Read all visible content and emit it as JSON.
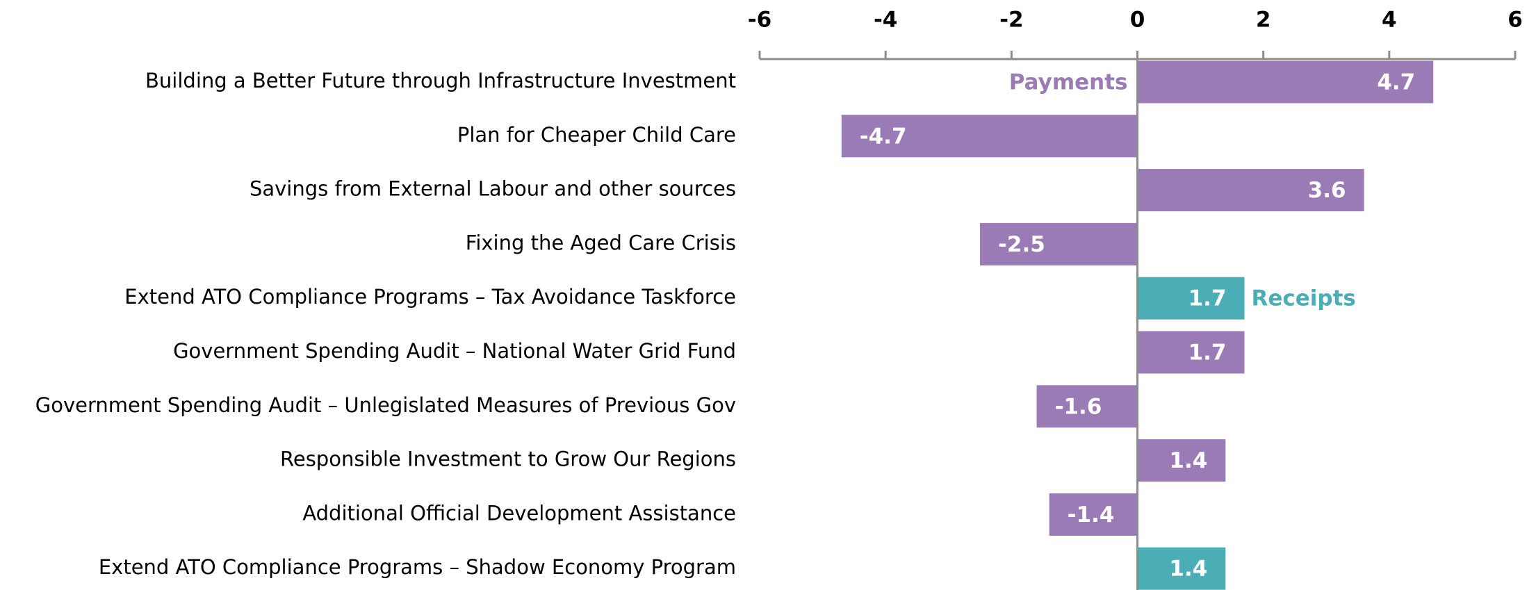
{
  "chart_data": {
    "type": "hbar",
    "categories": [
      "Building a Better Future through Infrastructure Investment",
      "Plan for Cheaper Child Care",
      "Savings from External Labour and other sources",
      "Fixing the Aged Care Crisis",
      "Extend ATO Compliance Programs – Tax Avoidance Taskforce",
      "Government Spending Audit – National Water Grid Fund",
      "Government Spending Audit – Unlegislated Measures of Previous Gov",
      "Responsible Investment to Grow Our Regions",
      "Additional Official Development Assistance",
      "Extend ATO Compliance Programs – Shadow Economy Program"
    ],
    "series": [
      {
        "name": "Payments",
        "color": "#9a7bb6",
        "values": [
          4.7,
          -4.7,
          3.6,
          -2.5,
          null,
          1.7,
          -1.6,
          1.4,
          -1.4,
          null
        ]
      },
      {
        "name": "Receipts",
        "color": "#4badb5",
        "values": [
          null,
          null,
          null,
          null,
          1.7,
          null,
          null,
          null,
          null,
          1.4
        ]
      }
    ],
    "xlim": [
      -6,
      6
    ],
    "xticks": [
      -6,
      -4,
      -2,
      0,
      2,
      4,
      6
    ]
  }
}
